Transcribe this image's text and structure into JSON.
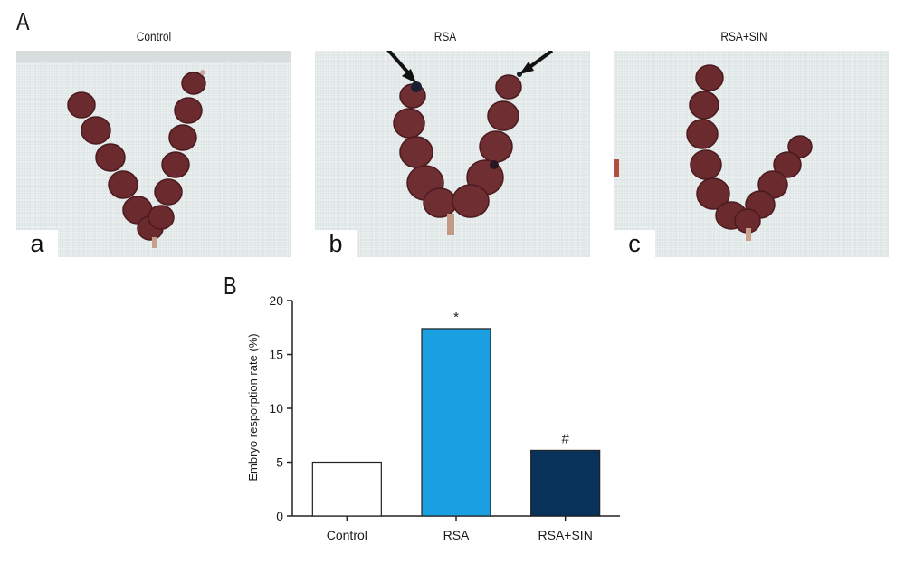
{
  "figure": {
    "panel_a_label": "A",
    "panel_b_label": "B"
  },
  "photos": [
    {
      "title": "Control",
      "sublabel": "a"
    },
    {
      "title": "RSA",
      "sublabel": "b"
    },
    {
      "title": "RSA+SIN",
      "sublabel": "c"
    }
  ],
  "chart_data": {
    "type": "bar",
    "categories": [
      "Control",
      "RSA",
      "RSA+SIN"
    ],
    "values": [
      5.0,
      17.4,
      6.1
    ],
    "annotations": [
      "",
      "*",
      "#"
    ],
    "ylabel": "Embryo resporption rate (%)",
    "xlabel": "",
    "ylim": [
      0,
      20
    ],
    "yticks": [
      0,
      5,
      10,
      15,
      20
    ],
    "colors": [
      "#ffffff",
      "#1a9fe0",
      "#08325a"
    ],
    "grid": false
  }
}
